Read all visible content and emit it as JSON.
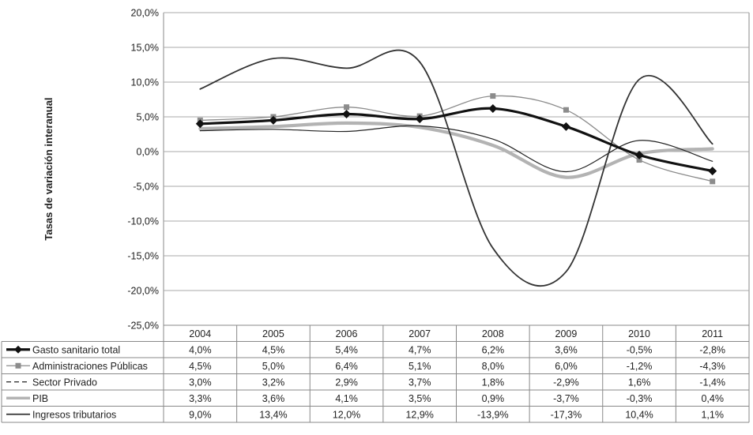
{
  "chart_data": {
    "type": "line",
    "title": "",
    "xlabel": "",
    "ylabel": "Tasas de variación interanual",
    "ylim": [
      -25,
      20
    ],
    "ytick_step": 5,
    "ytick_labels": [
      "20,0%",
      "15,0%",
      "10,0%",
      "5,0%",
      "0,0%",
      "-5,0%",
      "-10,0%",
      "-15,0%",
      "-20,0%",
      "-25,0%"
    ],
    "grid": true,
    "legend": "data table below the chart",
    "categories": [
      "2004",
      "2005",
      "2006",
      "2007",
      "2008",
      "2009",
      "2010",
      "2011"
    ],
    "series": [
      {
        "name": "Gasto sanitario total",
        "values": [
          4.0,
          4.5,
          5.4,
          4.7,
          6.2,
          3.6,
          -0.5,
          -2.8
        ],
        "labels": [
          "4,0%",
          "4,5%",
          "5,4%",
          "4,7%",
          "6,2%",
          "3,6%",
          "-0,5%",
          "-2,8%"
        ],
        "color": "#111111",
        "style": "thick-diamond"
      },
      {
        "name": "Administraciones Públicas",
        "values": [
          4.5,
          5.0,
          6.4,
          5.1,
          8.0,
          6.0,
          -1.2,
          -4.3
        ],
        "labels": [
          "4,5%",
          "5,0%",
          "6,4%",
          "5,1%",
          "8,0%",
          "6,0%",
          "-1,2%",
          "-4,3%"
        ],
        "color": "#8c8c8c",
        "style": "thin-square"
      },
      {
        "name": "Sector Privado",
        "values": [
          3.0,
          3.2,
          2.9,
          3.7,
          1.8,
          -2.9,
          1.6,
          -1.4
        ],
        "labels": [
          "3,0%",
          "3,2%",
          "2,9%",
          "3,7%",
          "1,8%",
          "-2,9%",
          "1,6%",
          "-1,4%"
        ],
        "color": "#222222",
        "style": "thin-dash"
      },
      {
        "name": "PIB",
        "values": [
          3.3,
          3.6,
          4.1,
          3.5,
          0.9,
          -3.7,
          -0.3,
          0.4
        ],
        "labels": [
          "3,3%",
          "3,6%",
          "4,1%",
          "3,5%",
          "0,9%",
          "-3,7%",
          "-0,3%",
          "0,4%"
        ],
        "color": "#b3b3b3",
        "style": "thick-light"
      },
      {
        "name": "Ingresos tributarios",
        "values": [
          9.0,
          13.4,
          12.0,
          12.9,
          -13.9,
          -17.3,
          10.4,
          1.1
        ],
        "labels": [
          "9,0%",
          "13,4%",
          "12,0%",
          "12,9%",
          "-13,9%",
          "-17,3%",
          "10,4%",
          "1,1%"
        ],
        "color": "#333333",
        "style": "medium"
      }
    ]
  }
}
